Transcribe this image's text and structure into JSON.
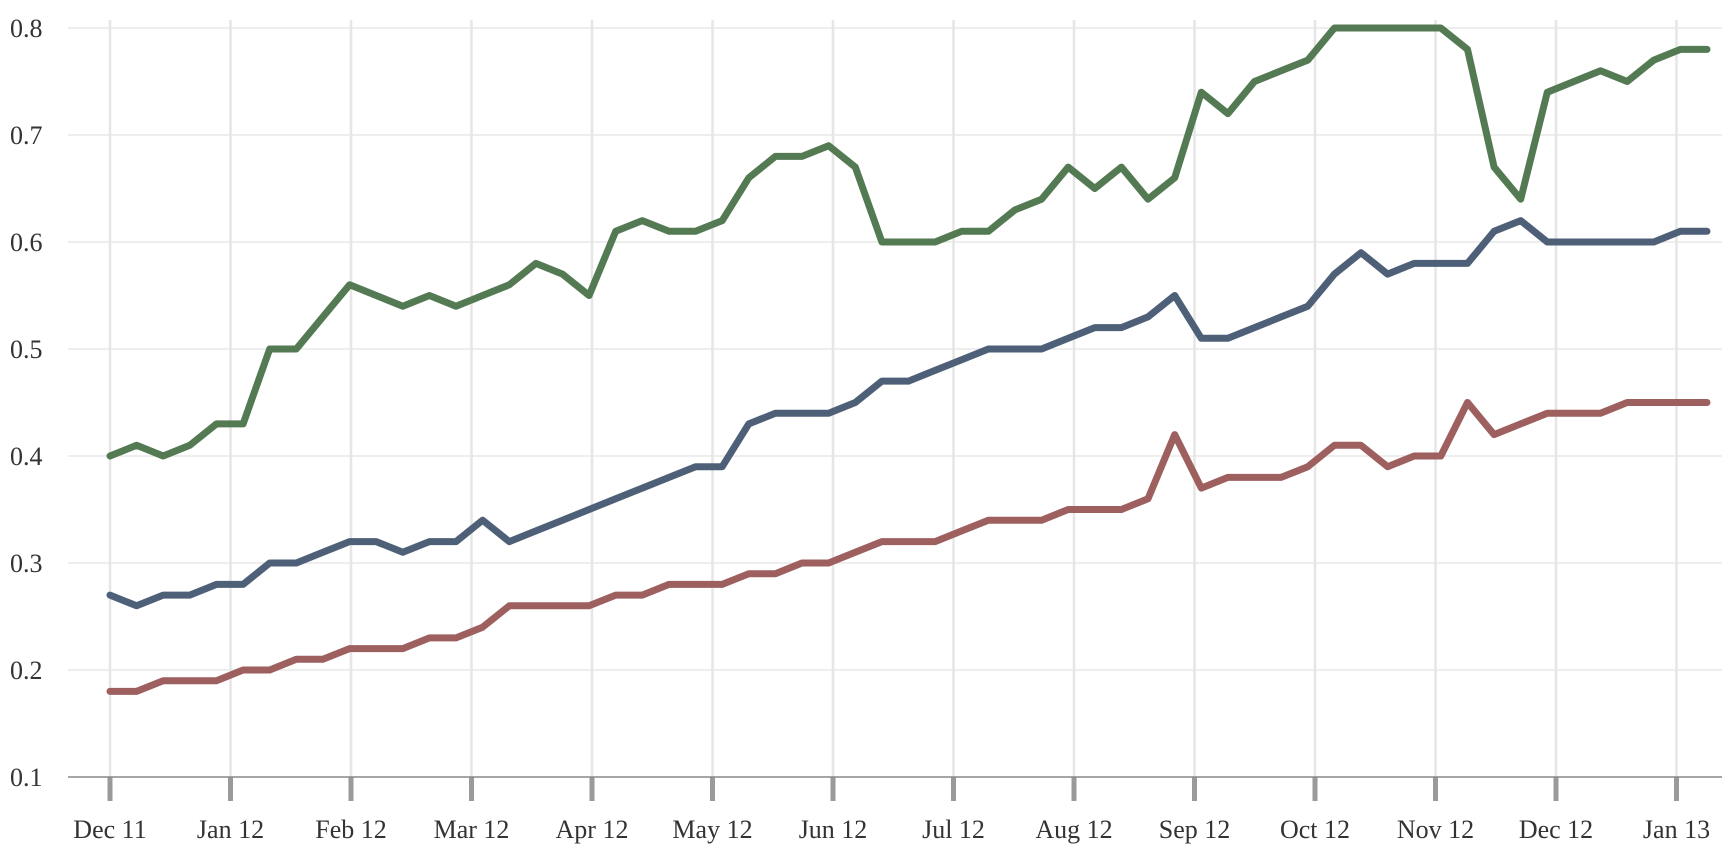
{
  "chart_data": {
    "type": "line",
    "title": "",
    "xlabel": "",
    "ylabel": "",
    "ylim": [
      0.1,
      0.8
    ],
    "y_ticks": [
      "0.1",
      "0.2",
      "0.3",
      "0.4",
      "0.5",
      "0.6",
      "0.7",
      "0.8"
    ],
    "x_tick_labels": [
      "Dec 11",
      "Jan 12",
      "Feb 12",
      "Mar 12",
      "Apr 12",
      "May 12",
      "Jun 12",
      "Jul 12",
      "Aug 12",
      "Sep 12",
      "Oct 12",
      "Nov 12",
      "Dec 12",
      "Jan 13"
    ],
    "x_range_months": [
      "Dec 11",
      "Jan 13"
    ],
    "grid": {
      "horizontal": true,
      "vertical": true
    },
    "legend": "none",
    "series": [
      {
        "color": "#537a53",
        "x": [
          "Dec 11",
          "Dec 11",
          "Dec 11",
          "Dec 11",
          "Dec 11",
          "Jan 12",
          "Jan 12",
          "Jan 12",
          "Jan 12",
          "Feb 12",
          "Feb 12",
          "Feb 12",
          "Feb 12",
          "Mar 12",
          "Mar 12",
          "Mar 12",
          "Mar 12",
          "Apr 12",
          "Apr 12",
          "Apr 12",
          "Apr 12",
          "May 12",
          "May 12",
          "May 12",
          "May 12",
          "Jun 12",
          "Jun 12",
          "Jun 12",
          "Jun 12",
          "Jul 12",
          "Jul 12",
          "Jul 12",
          "Jul 12",
          "Aug 12",
          "Aug 12",
          "Aug 12",
          "Aug 12",
          "Sep 12",
          "Sep 12",
          "Sep 12",
          "Sep 12",
          "Oct 12",
          "Oct 12",
          "Oct 12",
          "Oct 12",
          "Nov 12",
          "Nov 12",
          "Nov 12",
          "Nov 12",
          "Dec 12",
          "Dec 12",
          "Dec 12",
          "Dec 12",
          "Jan 13",
          "Jan 13",
          "Jan 13",
          "Jan 13",
          "Jan 13",
          "Jan 13",
          "Jan 13",
          "Jan 13"
        ],
        "values": [
          0.4,
          0.41,
          0.4,
          0.41,
          0.43,
          0.43,
          0.5,
          0.5,
          0.53,
          0.56,
          0.55,
          0.54,
          0.55,
          0.54,
          0.55,
          0.56,
          0.58,
          0.57,
          0.55,
          0.61,
          0.62,
          0.61,
          0.61,
          0.62,
          0.66,
          0.68,
          0.68,
          0.69,
          0.67,
          0.6,
          0.6,
          0.6,
          0.61,
          0.61,
          0.63,
          0.64,
          0.67,
          0.65,
          0.67,
          0.64,
          0.66,
          0.74,
          0.72,
          0.75,
          0.76,
          0.77,
          0.8,
          0.8,
          0.8,
          0.8,
          0.8,
          0.78,
          0.67,
          0.64,
          0.74,
          0.75,
          0.76,
          0.75,
          0.77,
          0.78,
          0.78
        ]
      },
      {
        "color": "#4e6078",
        "values": [
          0.27,
          0.26,
          0.27,
          0.27,
          0.28,
          0.28,
          0.3,
          0.3,
          0.31,
          0.32,
          0.32,
          0.31,
          0.32,
          0.32,
          0.34,
          0.32,
          0.33,
          0.34,
          0.35,
          0.36,
          0.37,
          0.38,
          0.39,
          0.39,
          0.43,
          0.44,
          0.44,
          0.44,
          0.45,
          0.47,
          0.47,
          0.48,
          0.49,
          0.5,
          0.5,
          0.5,
          0.51,
          0.52,
          0.52,
          0.53,
          0.55,
          0.51,
          0.51,
          0.52,
          0.53,
          0.54,
          0.57,
          0.59,
          0.57,
          0.58,
          0.58,
          0.58,
          0.61,
          0.62,
          0.6,
          0.6,
          0.6,
          0.6,
          0.6,
          0.61,
          0.61
        ]
      },
      {
        "color": "#9e5f5f",
        "values": [
          0.18,
          0.18,
          0.19,
          0.19,
          0.19,
          0.2,
          0.2,
          0.21,
          0.21,
          0.22,
          0.22,
          0.22,
          0.23,
          0.23,
          0.24,
          0.26,
          0.26,
          0.26,
          0.26,
          0.27,
          0.27,
          0.28,
          0.28,
          0.28,
          0.29,
          0.29,
          0.3,
          0.3,
          0.31,
          0.32,
          0.32,
          0.32,
          0.33,
          0.34,
          0.34,
          0.34,
          0.35,
          0.35,
          0.35,
          0.36,
          0.42,
          0.37,
          0.38,
          0.38,
          0.38,
          0.39,
          0.41,
          0.41,
          0.39,
          0.4,
          0.4,
          0.45,
          0.42,
          0.43,
          0.44,
          0.44,
          0.44,
          0.45,
          0.45,
          0.45,
          0.45
        ]
      }
    ]
  }
}
